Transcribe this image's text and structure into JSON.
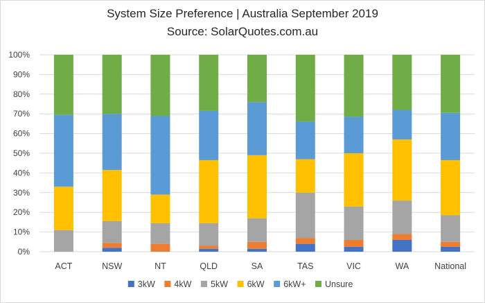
{
  "chart_data": {
    "type": "bar",
    "stacked": true,
    "percent": true,
    "title": "System Size Preference  | Australia September 2019",
    "subtitle": "Source: SolarQuotes.com.au",
    "categories": [
      "ACT",
      "NSW",
      "NT",
      "QLD",
      "SA",
      "TAS",
      "VIC",
      "WA",
      "National"
    ],
    "yticks": [
      "0%",
      "10%",
      "20%",
      "30%",
      "40%",
      "50%",
      "60%",
      "70%",
      "80%",
      "90%",
      "100%"
    ],
    "ylim": [
      0,
      100
    ],
    "grid": true,
    "legend": "bottom",
    "series": [
      {
        "name": "3kW",
        "color": "#4472c4",
        "values": [
          0,
          2,
          0,
          1.5,
          1.5,
          4,
          2.5,
          6,
          2.5
        ]
      },
      {
        "name": "4kW",
        "color": "#ed7d31",
        "values": [
          0,
          2.5,
          4,
          1.5,
          3.5,
          3,
          3.5,
          3,
          2.5
        ]
      },
      {
        "name": "5kW",
        "color": "#a5a5a5",
        "values": [
          11,
          11,
          10.5,
          11.5,
          12,
          23,
          17,
          17,
          13.5
        ]
      },
      {
        "name": "6kW",
        "color": "#ffc000",
        "values": [
          22,
          26,
          14.5,
          32,
          32,
          17,
          27,
          31,
          28
        ]
      },
      {
        "name": "6kW+",
        "color": "#5b9bd5",
        "values": [
          36.5,
          28.5,
          40,
          25,
          27,
          19,
          18.5,
          15,
          24
        ]
      },
      {
        "name": "Unsure",
        "color": "#70ad47",
        "values": [
          30.5,
          30,
          31,
          28.5,
          24,
          34,
          31.5,
          28,
          29.5
        ]
      }
    ]
  }
}
